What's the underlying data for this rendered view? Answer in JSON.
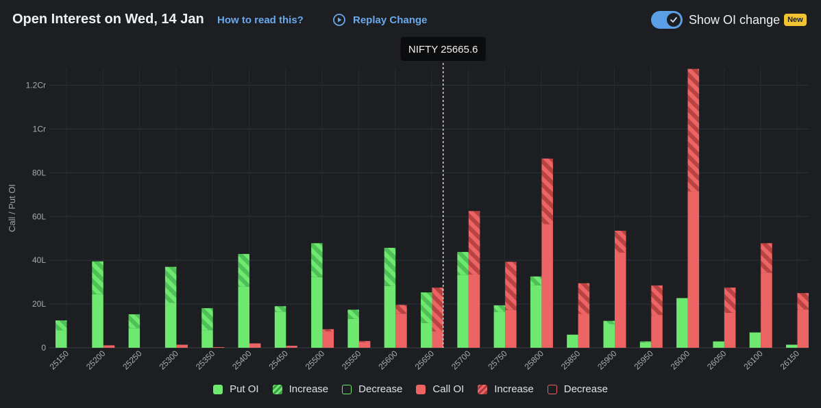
{
  "header": {
    "title": "Open Interest on Wed, 14 Jan",
    "how_to_label": "How to read this?",
    "replay_label": "Replay Change",
    "toggle_label": "Show OI change",
    "toggle_on": true,
    "badge": "New"
  },
  "spot": {
    "label": "NIFTY 25665.6",
    "value": 25665.6
  },
  "colors": {
    "put": "#6ee86e",
    "put_increase": "#4fc25a",
    "call": "#ec6464",
    "call_increase": "#c94848",
    "background": "#1c1e22",
    "grid": "#2f353b",
    "accent": "#6aa9ec"
  },
  "legend": [
    {
      "label": "Put OI",
      "kind": "put-solid"
    },
    {
      "label": "Increase",
      "kind": "put-hatch"
    },
    {
      "label": "Decrease",
      "kind": "put-outline"
    },
    {
      "label": "Call OI",
      "kind": "call-solid"
    },
    {
      "label": "Increase",
      "kind": "call-hatch"
    },
    {
      "label": "Decrease",
      "kind": "call-outline"
    }
  ],
  "chart_data": {
    "type": "bar",
    "ylabel": "Call / Put OI",
    "unit": "Lakh",
    "ylim": [
      0,
      128
    ],
    "yticks": [
      {
        "value": 0,
        "label": "0"
      },
      {
        "value": 20,
        "label": "20L"
      },
      {
        "value": 40,
        "label": "40L"
      },
      {
        "value": 60,
        "label": "60L"
      },
      {
        "value": 80,
        "label": "80L"
      },
      {
        "value": 100,
        "label": "1Cr"
      },
      {
        "value": 120,
        "label": "1.2Cr"
      }
    ],
    "grid": true,
    "legend_position": "bottom",
    "categories": [
      "25150",
      "25200",
      "25250",
      "25300",
      "25350",
      "25400",
      "25450",
      "25500",
      "25550",
      "25600",
      "25650",
      "25700",
      "25750",
      "25800",
      "25850",
      "25900",
      "25950",
      "26000",
      "26050",
      "26100",
      "26150"
    ],
    "series": [
      {
        "name": "Put OI",
        "values": [
          12.5,
          39.5,
          15.3,
          37,
          18.1,
          42.9,
          19,
          47.8,
          17.4,
          45.7,
          25.3,
          43.8,
          19.4,
          32.6,
          6,
          12.3,
          2.9,
          22.7,
          2.9,
          7,
          1.4
        ],
        "increase": [
          4.5,
          15,
          6.3,
          16.5,
          10,
          15,
          2.5,
          15.5,
          4.2,
          17.5,
          14,
          10.5,
          3,
          4,
          0,
          1.5,
          0.5,
          0,
          0,
          0,
          0
        ]
      },
      {
        "name": "Call OI",
        "values": [
          0,
          1.1,
          0,
          1.4,
          0.3,
          2,
          0.9,
          8.5,
          3.1,
          19.6,
          27.5,
          62.5,
          39.3,
          86.5,
          29.5,
          53.5,
          28.5,
          127.5,
          27.5,
          47.8,
          25
        ],
        "increase": [
          0,
          0,
          0,
          0,
          0,
          0,
          0,
          1,
          0.5,
          4,
          20,
          29,
          22,
          30,
          14,
          10,
          13.5,
          56,
          11.5,
          13.5,
          7.5
        ]
      }
    ]
  }
}
